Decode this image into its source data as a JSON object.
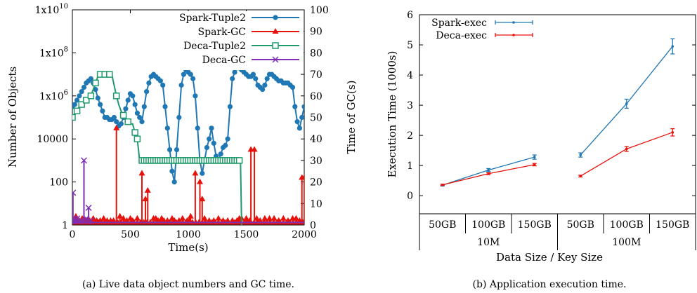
{
  "chart_data": [
    {
      "type": "line",
      "caption": "(a) Live data object numbers and GC time.",
      "xlabel": "Time(s)",
      "ylabel_left": "Number of Objects",
      "ylabel_right": "Time of GC(s)",
      "xlim": [
        0,
        2000
      ],
      "ylim_left_log10": [
        0,
        10
      ],
      "ylim_right": [
        0,
        100
      ],
      "x_ticks": [
        0,
        500,
        1000,
        1500,
        2000
      ],
      "y_ticks_left": [
        {
          "label": "1",
          "exp": 0
        },
        {
          "label": "100",
          "exp": 2
        },
        {
          "label": "10000",
          "exp": 4
        },
        {
          "label": "1x10",
          "sup": "6",
          "exp": 6
        },
        {
          "label": "1x10",
          "sup": "8",
          "exp": 8
        },
        {
          "label": "1x10",
          "sup": "10",
          "exp": 10
        }
      ],
      "y_ticks_right": [
        0,
        10,
        20,
        30,
        40,
        50,
        60,
        70,
        80,
        90,
        100
      ],
      "legend_position": "top-right",
      "series": [
        {
          "name": "Spark-Tuple2",
          "color": "#1f77b4",
          "marker": "circle",
          "axis": "left",
          "x": [
            0,
            20,
            40,
            60,
            80,
            100,
            120,
            140,
            160,
            180,
            200,
            220,
            240,
            260,
            280,
            300,
            320,
            340,
            360,
            380,
            400,
            420,
            440,
            460,
            480,
            500,
            520,
            540,
            560,
            580,
            600,
            620,
            640,
            660,
            680,
            700,
            720,
            740,
            760,
            780,
            800,
            820,
            840,
            860,
            880,
            900,
            920,
            940,
            960,
            980,
            1000,
            1020,
            1040,
            1060,
            1080,
            1100,
            1120,
            1140,
            1160,
            1180,
            1200,
            1220,
            1240,
            1260,
            1280,
            1300,
            1320,
            1340,
            1360,
            1380,
            1400,
            1420,
            1440,
            1460,
            1480,
            1500,
            1520,
            1540,
            1560,
            1580,
            1600,
            1620,
            1640,
            1660,
            1680,
            1700,
            1720,
            1740,
            1760,
            1780,
            1800,
            1820,
            1840,
            1860,
            1880,
            1900,
            1920,
            1940,
            1960,
            1980,
            2000
          ],
          "y_log10": [
            5.5,
            5.6,
            5.8,
            6.0,
            6.2,
            6.4,
            6.6,
            6.7,
            6.8,
            6.6,
            6.3,
            5.9,
            5.6,
            5.3,
            5.0,
            5.0,
            4.9,
            4.9,
            5.0,
            4.8,
            4.6,
            4.7,
            5.0,
            5.4,
            5.8,
            6.1,
            6.0,
            5.6,
            5.2,
            5.0,
            4.8,
            5.5,
            6.2,
            6.6,
            6.9,
            7.0,
            6.9,
            6.8,
            6.7,
            6.5,
            5.5,
            4.5,
            3.5,
            2.5,
            2.0,
            3.5,
            5.0,
            6.5,
            7.0,
            7.2,
            7.1,
            7.0,
            6.8,
            6.0,
            4.5,
            3.0,
            2.4,
            3.0,
            3.6,
            4.0,
            4.5,
            3.8,
            3.2,
            3.0,
            3.3,
            3.6,
            3.7,
            4.0,
            5.5,
            6.8,
            7.1,
            7.3,
            7.3,
            7.2,
            7.1,
            7.0,
            6.9,
            6.9,
            7.0,
            6.8,
            6.5,
            6.4,
            6.3,
            6.5,
            6.8,
            7.0,
            7.0,
            6.9,
            6.8,
            6.7,
            6.7,
            6.6,
            6.6,
            6.6,
            6.5,
            6.4,
            5.5,
            4.8,
            4.5,
            5.0,
            5.5
          ]
        },
        {
          "name": "Spark-GC",
          "color": "#e8120c",
          "marker": "triangle",
          "axis": "right",
          "spikes_x": [
            10,
            30,
            60,
            85,
            110,
            130,
            150,
            180,
            210,
            240,
            270,
            300,
            330,
            355,
            380,
            410,
            440,
            470,
            500,
            520,
            560,
            600,
            630,
            650,
            700,
            720,
            740,
            770,
            790,
            820,
            860,
            880,
            920,
            950,
            990,
            1010,
            1020,
            1060,
            1100,
            1120,
            1140,
            1180,
            1220,
            1260,
            1300,
            1340,
            1380,
            1420,
            1440,
            1460,
            1500,
            1530,
            1540,
            1570,
            1590,
            1620,
            1660,
            1700,
            1740,
            1780,
            1820,
            1860,
            1900,
            1930,
            1960,
            1980,
            2000
          ],
          "spikes_y": [
            2,
            4,
            2,
            3,
            2,
            2,
            2,
            3,
            2,
            2,
            3,
            2,
            2,
            2,
            45,
            4,
            3,
            2,
            3,
            2,
            3,
            24,
            12,
            16,
            3,
            3,
            2,
            3,
            2,
            2,
            3,
            2,
            2,
            3,
            2,
            2,
            4,
            24,
            20,
            12,
            3,
            2,
            2,
            3,
            2,
            2,
            2,
            2,
            3,
            3,
            3,
            2,
            35,
            35,
            3,
            2,
            3,
            3,
            3,
            2,
            3,
            2,
            3,
            3,
            2,
            22,
            22
          ]
        },
        {
          "name": "Deca-Tuple2",
          "color": "#1f9a6b",
          "marker": "square",
          "axis": "left",
          "x": [
            0,
            20,
            40,
            60,
            80,
            100,
            120,
            140,
            160,
            180,
            200,
            220,
            240,
            260,
            280,
            300,
            320,
            340,
            360,
            380,
            400,
            420,
            440,
            460,
            480,
            500,
            520,
            540,
            560,
            580,
            600,
            620,
            640,
            660,
            680,
            700,
            720,
            740,
            760,
            780,
            800,
            820,
            840,
            860,
            880,
            900,
            920,
            940,
            960,
            980,
            1000,
            1020,
            1040,
            1060,
            1080,
            1100,
            1120,
            1140,
            1160,
            1180,
            1200,
            1220,
            1240,
            1260,
            1280,
            1300,
            1320,
            1340,
            1360,
            1380,
            1400,
            1420,
            1440,
            1450,
            1460
          ],
          "y_log10": [
            5.0,
            5.1,
            5.3,
            5.5,
            5.6,
            5.7,
            5.8,
            5.9,
            6.0,
            6.3,
            6.6,
            6.9,
            7.0,
            7.0,
            7.0,
            7.0,
            7.0,
            7.0,
            6.5,
            6.0,
            5.6,
            5.3,
            5.1,
            5.0,
            4.8,
            4.7,
            4.7,
            4.3,
            4.0,
            3.0,
            3.0,
            3.0,
            3.0,
            3.0,
            3.0,
            3.0,
            3.0,
            3.0,
            3.0,
            3.0,
            3.0,
            3.0,
            3.0,
            3.0,
            3.0,
            3.0,
            3.0,
            3.0,
            3.0,
            3.0,
            3.0,
            3.0,
            3.0,
            3.0,
            3.0,
            3.0,
            3.0,
            3.0,
            3.0,
            3.0,
            3.0,
            3.0,
            3.0,
            3.0,
            3.0,
            3.0,
            3.0,
            3.0,
            3.0,
            3.0,
            3.0,
            3.0,
            3.0,
            3.0,
            0.0
          ],
          "markers_x": [
            0,
            40,
            80,
            120,
            160,
            200,
            240,
            280,
            320,
            380,
            440,
            480,
            540,
            560
          ]
        },
        {
          "name": "Deca-GC",
          "color": "#7e2fb5",
          "marker": "x",
          "axis": "right",
          "spikes_x": [
            5,
            15,
            25,
            40,
            60,
            80,
            100,
            120,
            140,
            160
          ],
          "spikes_y": [
            15,
            3,
            2,
            3,
            2,
            2,
            30,
            3,
            8,
            2
          ]
        }
      ]
    },
    {
      "type": "line",
      "caption": "(b) Application execution time.",
      "xlabel": "Data Size / Key Size",
      "ylabel": "Execution Time (1000s)",
      "ylim": [
        -0.6,
        6
      ],
      "y_ticks": [
        0,
        1,
        2,
        3,
        4,
        5,
        6
      ],
      "categories": [
        "50GB",
        "100GB",
        "150GB",
        "50GB",
        "100GB",
        "150GB"
      ],
      "groups": [
        {
          "label": "10M",
          "span": [
            0,
            2
          ]
        },
        {
          "label": "100M",
          "span": [
            3,
            5
          ]
        }
      ],
      "legend_position": "top-left",
      "series": [
        {
          "name": "Spark-exec",
          "color": "#1f77b4",
          "values": [
            0.35,
            0.85,
            1.28,
            1.35,
            3.05,
            4.95
          ],
          "errors": [
            0.03,
            0.05,
            0.07,
            0.07,
            0.15,
            0.25
          ]
        },
        {
          "name": "Deca-exec",
          "color": "#e8120c",
          "values": [
            0.36,
            0.73,
            1.03,
            0.65,
            1.55,
            2.1
          ],
          "errors": [
            0.02,
            0.03,
            0.04,
            0.03,
            0.08,
            0.12
          ]
        }
      ]
    }
  ]
}
